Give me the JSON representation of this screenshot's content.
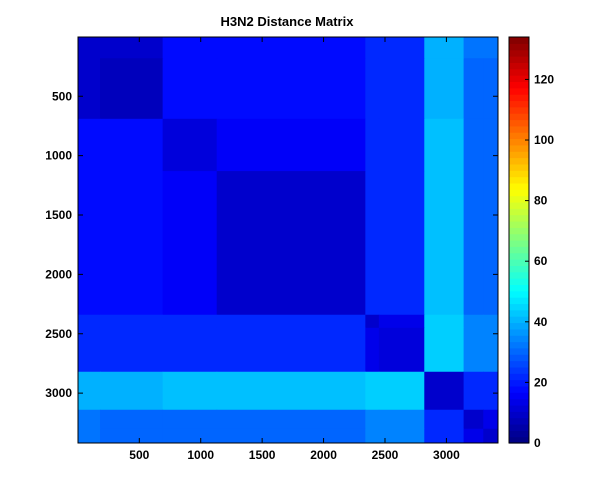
{
  "chart_data": {
    "type": "heatmap",
    "title": "H3N2 Distance Matrix",
    "xlabel": "",
    "ylabel": "",
    "xlim": [
      1,
      3420
    ],
    "ylim": [
      1,
      3420
    ],
    "x_ticks": [
      500,
      1000,
      1500,
      2000,
      2500,
      3000
    ],
    "y_ticks": [
      500,
      1000,
      1500,
      2000,
      2500,
      3000
    ],
    "colorbar": {
      "colormap": "jet",
      "range": [
        0,
        134
      ],
      "ticks": [
        0,
        20,
        40,
        60,
        80,
        100,
        120
      ]
    },
    "block_boundaries": [
      180,
      690,
      1130,
      2340,
      2450,
      2820,
      3140,
      3300
    ],
    "cells": [
      [
        10,
        10,
        18,
        18,
        22,
        22,
        40,
        32,
        32,
        38
      ],
      [
        10,
        8,
        18,
        18,
        22,
        22,
        40,
        30,
        30,
        38
      ],
      [
        18,
        18,
        12,
        16,
        22,
        22,
        42,
        30,
        30,
        40
      ],
      [
        18,
        18,
        16,
        10,
        22,
        22,
        42,
        30,
        30,
        40
      ],
      [
        22,
        22,
        22,
        22,
        10,
        14,
        44,
        34,
        34,
        42
      ],
      [
        22,
        22,
        22,
        22,
        14,
        12,
        44,
        34,
        34,
        42
      ],
      [
        40,
        40,
        42,
        42,
        44,
        44,
        10,
        22,
        22,
        30
      ],
      [
        32,
        30,
        30,
        30,
        34,
        34,
        22,
        10,
        14,
        24
      ],
      [
        32,
        30,
        30,
        30,
        34,
        34,
        22,
        14,
        10,
        24
      ],
      [
        38,
        38,
        40,
        40,
        42,
        42,
        30,
        24,
        24,
        12
      ]
    ]
  }
}
